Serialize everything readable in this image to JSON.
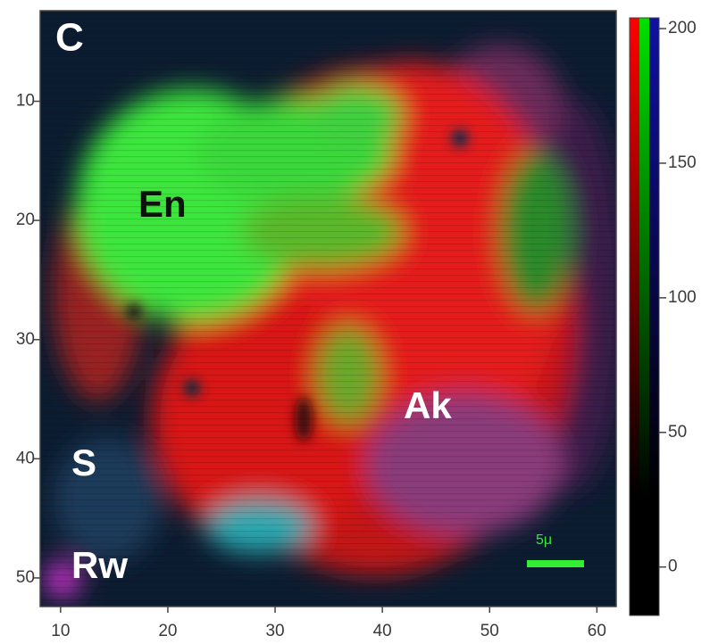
{
  "chart_data": {
    "type": "image",
    "annotations": [
      "C",
      "En",
      "Ak",
      "S",
      "Rw",
      "5μ"
    ],
    "xlim": [
      8.1,
      61.8
    ],
    "xticks": [
      10,
      20,
      30,
      40,
      50,
      60
    ],
    "ylim": [
      52.4,
      2.4
    ],
    "yticks": [
      10,
      20,
      30,
      40,
      50
    ],
    "colorbar": {
      "clim": [
        -18,
        204
      ],
      "ticks": [
        0,
        50,
        100,
        150,
        200
      ],
      "colors": [
        "#ff0000",
        "#00e000",
        "#1010a0"
      ]
    }
  }
}
